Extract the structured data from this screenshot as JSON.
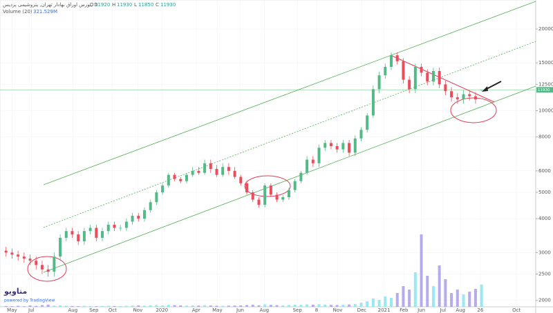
{
  "header": {
    "symbol": "بورس اوراق بهادار تهران, پتروشیمی پردیس, D",
    "o": "O",
    "h": "H",
    "l": "L",
    "c": "C",
    "volume_name": "Volume (20)",
    "volume_reading": "321.529M"
  },
  "watermark": {
    "brand": "متاویو",
    "powered": "powered by TradingView"
  },
  "chart_data": {
    "type": "candlestick",
    "log_scale": true,
    "up_color": "#53b987",
    "down_color": "#eb4d5c",
    "volume_up_color": "#7fe4f0",
    "volume_down_color": "#a497e6",
    "x": [
      0,
      1,
      2,
      3,
      4,
      5,
      6,
      7,
      8,
      9,
      10,
      11,
      12,
      13,
      14,
      15,
      16,
      17,
      18,
      19,
      20,
      21,
      22,
      23,
      24,
      25,
      26,
      27,
      28,
      29,
      30,
      31,
      32,
      33,
      34,
      35,
      36,
      37,
      38,
      39,
      40,
      41,
      42,
      43,
      44,
      45,
      46,
      47,
      48,
      49,
      50,
      51,
      52,
      53,
      54,
      55,
      56,
      57,
      58,
      59,
      60,
      61,
      62,
      63,
      64,
      65,
      66,
      67,
      68,
      69,
      70,
      71,
      72,
      73,
      74,
      75,
      76,
      77,
      78,
      79
    ],
    "open": [
      3050,
      3000,
      2950,
      2900,
      2850,
      2800,
      2700,
      2600,
      2550,
      2900,
      3400,
      3600,
      3500,
      3300,
      3600,
      3700,
      3400,
      3600,
      3800,
      3700,
      3700,
      3900,
      4100,
      4000,
      4300,
      4600,
      5000,
      5300,
      5800,
      5600,
      5500,
      5800,
      6000,
      5900,
      6400,
      6100,
      5800,
      6200,
      6000,
      5700,
      5400,
      5000,
      4700,
      4500,
      5300,
      4900,
      4700,
      4800,
      5100,
      5500,
      5900,
      6600,
      6400,
      7300,
      7600,
      7400,
      7200,
      7600,
      7000,
      7900,
      8500,
      9600,
      12000,
      13500,
      14500,
      16000,
      15200,
      13000,
      12000,
      14500,
      13800,
      12800,
      14000,
      12500,
      11800,
      11200,
      11000,
      11500,
      11300,
      11920
    ],
    "high": [
      3150,
      3100,
      3050,
      3000,
      2950,
      2900,
      2800,
      2700,
      3000,
      3500,
      3700,
      3700,
      3600,
      3700,
      3800,
      3800,
      3700,
      3900,
      3900,
      3800,
      4000,
      4200,
      4200,
      4400,
      4700,
      5100,
      5400,
      5900,
      5900,
      5700,
      5900,
      6200,
      6200,
      6600,
      6600,
      6300,
      6400,
      6400,
      6200,
      5800,
      5500,
      5100,
      4800,
      5400,
      5400,
      5000,
      4900,
      5200,
      5600,
      6000,
      6800,
      6800,
      7500,
      7800,
      7800,
      7600,
      7800,
      7800,
      8100,
      8700,
      9800,
      12400,
      13900,
      14900,
      16400,
      16400,
      15600,
      13400,
      14900,
      14900,
      14200,
      14400,
      14400,
      12900,
      12200,
      11600,
      11900,
      11900,
      11700,
      11930
    ],
    "low": [
      2900,
      2850,
      2800,
      2750,
      2700,
      2600,
      2500,
      2450,
      2450,
      2800,
      3300,
      3400,
      3200,
      3200,
      3500,
      3300,
      3300,
      3500,
      3600,
      3600,
      3600,
      3800,
      3900,
      3900,
      4200,
      4500,
      4900,
      5200,
      5500,
      5400,
      5400,
      5700,
      5800,
      5800,
      5900,
      5700,
      5700,
      5800,
      5600,
      5300,
      4900,
      4600,
      4400,
      4400,
      4800,
      4600,
      4600,
      4700,
      5000,
      5400,
      5800,
      6200,
      6200,
      7100,
      7200,
      7000,
      7000,
      6800,
      6800,
      7700,
      8300,
      9400,
      11600,
      13100,
      14100,
      14800,
      12600,
      11600,
      11600,
      13400,
      12400,
      12400,
      12100,
      11400,
      10800,
      10600,
      10600,
      10900,
      10600,
      11850
    ],
    "close": [
      3000,
      2950,
      2900,
      2850,
      2800,
      2700,
      2600,
      2550,
      2900,
      3400,
      3600,
      3500,
      3300,
      3600,
      3700,
      3400,
      3600,
      3800,
      3700,
      3700,
      3900,
      4100,
      4000,
      4300,
      4600,
      5000,
      5300,
      5800,
      5600,
      5500,
      5800,
      6000,
      5900,
      6400,
      6100,
      5800,
      6200,
      6000,
      5700,
      5400,
      5000,
      4700,
      4500,
      5300,
      4900,
      4700,
      4800,
      5100,
      5500,
      5900,
      6600,
      6400,
      7300,
      7600,
      7400,
      7200,
      7600,
      7000,
      7900,
      8500,
      9600,
      12000,
      13500,
      14500,
      16000,
      15200,
      13000,
      12000,
      14500,
      13800,
      12800,
      14000,
      12500,
      11800,
      11200,
      11000,
      11500,
      11300,
      11000,
      11930
    ],
    "volume": [
      12,
      10,
      15,
      8,
      20,
      14,
      25,
      30,
      18,
      22,
      16,
      12,
      10,
      14,
      11,
      9,
      13,
      15,
      12,
      10,
      14,
      18,
      20,
      16,
      22,
      25,
      19,
      28,
      24,
      20,
      18,
      21,
      17,
      23,
      19,
      15,
      14,
      16,
      18,
      20,
      25,
      30,
      22,
      35,
      28,
      24,
      20,
      26,
      30,
      28,
      35,
      30,
      38,
      32,
      28,
      26,
      30,
      34,
      40,
      60,
      80,
      120,
      100,
      150,
      130,
      200,
      300,
      250,
      500,
      1050,
      450,
      300,
      600,
      400,
      200,
      250,
      180,
      220,
      260,
      321.529
    ],
    "volume_lim": [
      0,
      1100
    ],
    "xlim": [
      -1,
      88
    ],
    "xticks": [
      {
        "value": 1.0,
        "label": "May"
      },
      {
        "value": 4.2,
        "label": "Jul"
      },
      {
        "value": 11.1,
        "label": "Aug"
      },
      {
        "value": 14.6,
        "label": "Sep"
      },
      {
        "value": 17.7,
        "label": "Oct"
      },
      {
        "value": 21.9,
        "label": "Nov"
      },
      {
        "value": 25.9,
        "label": "2020"
      },
      {
        "value": 31.6,
        "label": "Apr"
      },
      {
        "value": 35.1,
        "label": "May"
      },
      {
        "value": 38.9,
        "label": "Jun"
      },
      {
        "value": 42.9,
        "label": "Aug"
      },
      {
        "value": 48.4,
        "label": "Sep"
      },
      {
        "value": 51.6,
        "label": "8"
      },
      {
        "value": 55.1,
        "label": "Nov"
      },
      {
        "value": 59.1,
        "label": "Dec"
      },
      {
        "value": 62.8,
        "label": "2021"
      },
      {
        "value": 66.1,
        "label": "Feb"
      },
      {
        "value": 69.0,
        "label": "Jun"
      },
      {
        "value": 72.6,
        "label": "Jul"
      },
      {
        "value": 75.5,
        "label": "Aug"
      },
      {
        "value": 78.8,
        "label": "26"
      },
      {
        "value": 84.8,
        "label": "Oct"
      }
    ],
    "ylim": [
      1950,
      24400
    ],
    "yticks": [
      2000,
      2500,
      3000,
      4000,
      5000,
      6000,
      8000,
      10000,
      12500,
      15000,
      20000
    ]
  }
}
